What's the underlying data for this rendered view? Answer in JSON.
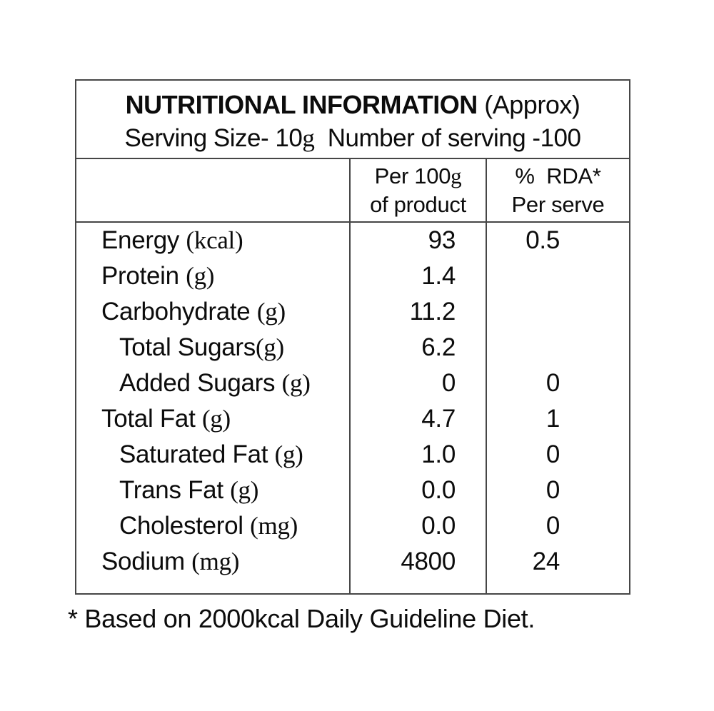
{
  "colors": {
    "text": "#0c0c0c",
    "border": "#464646",
    "background": "#ffffff"
  },
  "header": {
    "title_main": "NUTRITIONAL INFORMATION",
    "title_suffix": " (Approx)",
    "serving_prefix": "Serving Size- 10",
    "serving_g": "g",
    "serving_suffix": "  Number of serving -100"
  },
  "columns": {
    "per100_line1_prefix": "Per 100",
    "per100_g": "g",
    "per100_line2": "of product",
    "rda_line1": "%  RDA*",
    "rda_line2": "Per serve"
  },
  "rows": [
    {
      "name": "Energy ",
      "unit": "(kcal)",
      "per100": "93",
      "rda": "0.5"
    },
    {
      "name": "Protein ",
      "unit": "(g)",
      "per100": "1.4",
      "rda": ""
    },
    {
      "name": "Carbohydrate ",
      "unit": "(g)",
      "per100": "11.2",
      "rda": ""
    },
    {
      "name": "Total Sugars",
      "unit": "(g)",
      "per100": "6.2",
      "rda": ""
    },
    {
      "name": "Added Sugars ",
      "unit": "(g)",
      "per100": "0",
      "rda": "0"
    },
    {
      "name": "Total Fat ",
      "unit": "(g)",
      "per100": "4.7",
      "rda": "1"
    },
    {
      "name": "Saturated Fat ",
      "unit": "(g)",
      "per100": "1.0",
      "rda": "0"
    },
    {
      "name": "Trans Fat ",
      "unit": "(g)",
      "per100": "0.0",
      "rda": "0"
    },
    {
      "name": "Cholesterol ",
      "unit": "(mg)",
      "per100": "0.0",
      "rda": "0"
    },
    {
      "name": "Sodium ",
      "unit": "(mg)",
      "per100": "4800",
      "rda": "24"
    }
  ],
  "footnote": {
    "text": "* Based on 2000kcal Daily Guideline Diet."
  }
}
